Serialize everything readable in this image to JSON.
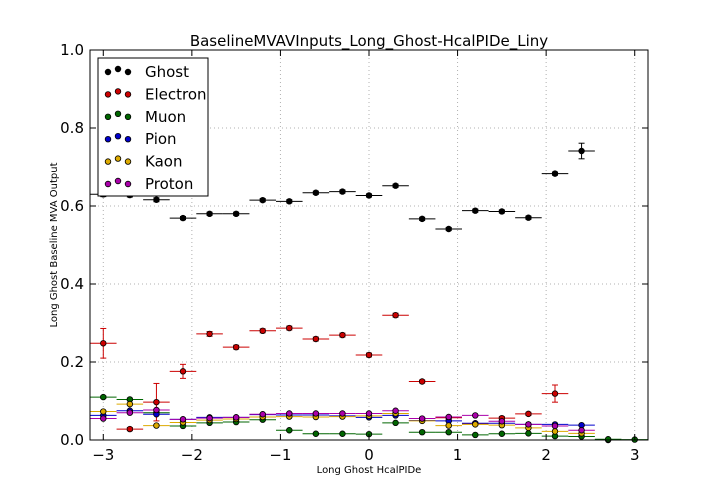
{
  "chart_data": {
    "type": "scatter",
    "title": "BaselineMVAVInputs_Long_Ghost-HcalPIDe_Liny",
    "xlabel": "Long Ghost HcalPIDe",
    "ylabel": "Long Ghost Baseline MVA Output",
    "xlim": [
      -3.15,
      3.15
    ],
    "ylim": [
      0.0,
      1.0
    ],
    "xticks": [
      -3,
      -2,
      -1,
      0,
      1,
      2,
      3
    ],
    "xtick_labels": [
      "−3",
      "−2",
      "−1",
      "0",
      "1",
      "2",
      "3"
    ],
    "yticks": [
      0.0,
      0.2,
      0.4,
      0.6,
      0.8,
      1.0
    ],
    "ytick_labels": [
      "0.0",
      "0.2",
      "0.4",
      "0.6",
      "0.8",
      "1.0"
    ],
    "grid": true,
    "legend_position": "top-left",
    "bin_half_width": 0.15,
    "series": [
      {
        "name": "Ghost",
        "color": "#000000",
        "x": [
          -3.0,
          -2.7,
          -2.4,
          -2.1,
          -1.8,
          -1.5,
          -1.2,
          -0.9,
          -0.6,
          -0.3,
          0.0,
          0.3,
          0.6,
          0.9,
          1.2,
          1.5,
          1.8,
          2.1,
          2.4,
          2.7
        ],
        "y": [
          0.63,
          0.628,
          0.616,
          0.569,
          0.58,
          0.58,
          0.615,
          0.612,
          0.634,
          0.637,
          0.627,
          0.652,
          0.567,
          0.541,
          0.588,
          0.586,
          0.57,
          0.683,
          0.741,
          0.0
        ],
        "yerr": [
          0.006,
          0.005,
          0.005,
          0.004,
          0.004,
          0.004,
          0.004,
          0.004,
          0.004,
          0.004,
          0.004,
          0.004,
          0.004,
          0.004,
          0.004,
          0.004,
          0.004,
          0.004,
          0.02,
          0.0
        ]
      },
      {
        "name": "Electron",
        "color": "#cc0000",
        "x": [
          -3.0,
          -2.7,
          -2.4,
          -2.1,
          -1.8,
          -1.5,
          -1.2,
          -0.9,
          -0.6,
          -0.3,
          0.0,
          0.3,
          0.6,
          0.9,
          1.2,
          1.5,
          1.8,
          2.1
        ],
        "y": [
          0.248,
          0.028,
          0.097,
          0.176,
          0.272,
          0.238,
          0.28,
          0.287,
          0.259,
          0.269,
          0.218,
          0.32,
          0.15,
          0.057,
          0.042,
          0.056,
          0.067,
          0.119
        ],
        "yerr": [
          0.038,
          0.004,
          0.048,
          0.018,
          0.006,
          0.005,
          0.005,
          0.005,
          0.005,
          0.005,
          0.005,
          0.005,
          0.004,
          0.004,
          0.004,
          0.004,
          0.004,
          0.022
        ]
      },
      {
        "name": "Muon",
        "color": "#006600",
        "x": [
          -3.0,
          -2.7,
          -2.4,
          -2.1,
          -1.8,
          -1.5,
          -1.2,
          -0.9,
          -0.6,
          -0.3,
          0.0,
          0.3,
          0.6,
          0.9,
          1.2,
          1.5,
          1.8,
          2.1,
          2.4,
          2.7,
          3.0
        ],
        "y": [
          0.11,
          0.104,
          0.07,
          0.036,
          0.044,
          0.046,
          0.052,
          0.025,
          0.016,
          0.016,
          0.015,
          0.044,
          0.02,
          0.02,
          0.013,
          0.016,
          0.017,
          0.01,
          0.009,
          0.002,
          0.001
        ],
        "yerr": [
          0.003,
          0.003,
          0.003,
          0.002,
          0.002,
          0.002,
          0.002,
          0.002,
          0.002,
          0.002,
          0.002,
          0.002,
          0.002,
          0.002,
          0.002,
          0.002,
          0.002,
          0.002,
          0.002,
          0.001,
          0.001
        ]
      },
      {
        "name": "Pion",
        "color": "#0000cc",
        "x": [
          -3.0,
          -2.7,
          -2.4,
          -2.1,
          -1.8,
          -1.5,
          -1.2,
          -0.9,
          -0.6,
          -0.3,
          0.0,
          0.3,
          0.6,
          0.9,
          1.2,
          1.5,
          1.8,
          2.1,
          2.4
        ],
        "y": [
          0.063,
          0.075,
          0.066,
          0.053,
          0.058,
          0.058,
          0.065,
          0.064,
          0.064,
          0.062,
          0.058,
          0.063,
          0.05,
          0.049,
          0.043,
          0.043,
          0.04,
          0.04,
          0.038
        ],
        "yerr": [
          0.002,
          0.002,
          0.002,
          0.002,
          0.002,
          0.002,
          0.002,
          0.002,
          0.002,
          0.002,
          0.002,
          0.002,
          0.002,
          0.002,
          0.002,
          0.002,
          0.002,
          0.002,
          0.002
        ]
      },
      {
        "name": "Kaon",
        "color": "#ddaa00",
        "x": [
          -3.0,
          -2.7,
          -2.4,
          -2.1,
          -1.8,
          -1.5,
          -1.2,
          -0.9,
          -0.6,
          -0.3,
          0.0,
          0.3,
          0.6,
          0.9,
          1.2,
          1.5,
          1.8,
          2.1,
          2.4
        ],
        "y": [
          0.073,
          0.092,
          0.037,
          0.045,
          0.051,
          0.054,
          0.059,
          0.06,
          0.059,
          0.06,
          0.062,
          0.068,
          0.049,
          0.037,
          0.04,
          0.038,
          0.031,
          0.022,
          0.017
        ],
        "yerr": [
          0.002,
          0.002,
          0.002,
          0.002,
          0.002,
          0.002,
          0.002,
          0.002,
          0.002,
          0.002,
          0.002,
          0.002,
          0.002,
          0.002,
          0.002,
          0.002,
          0.002,
          0.002,
          0.002
        ]
      },
      {
        "name": "Proton",
        "color": "#aa00aa",
        "x": [
          -3.0,
          -2.7,
          -2.4,
          -2.1,
          -1.8,
          -1.5,
          -1.2,
          -0.9,
          -0.6,
          -0.3,
          0.0,
          0.3,
          0.6,
          0.9,
          1.2,
          1.5,
          1.8,
          2.1,
          2.4
        ],
        "y": [
          0.055,
          0.07,
          0.077,
          0.053,
          0.056,
          0.058,
          0.066,
          0.068,
          0.068,
          0.068,
          0.068,
          0.075,
          0.055,
          0.059,
          0.063,
          0.048,
          0.04,
          0.036,
          0.025
        ],
        "yerr": [
          0.002,
          0.002,
          0.002,
          0.002,
          0.002,
          0.002,
          0.002,
          0.002,
          0.002,
          0.002,
          0.002,
          0.002,
          0.002,
          0.002,
          0.002,
          0.002,
          0.002,
          0.002,
          0.002
        ]
      }
    ]
  }
}
